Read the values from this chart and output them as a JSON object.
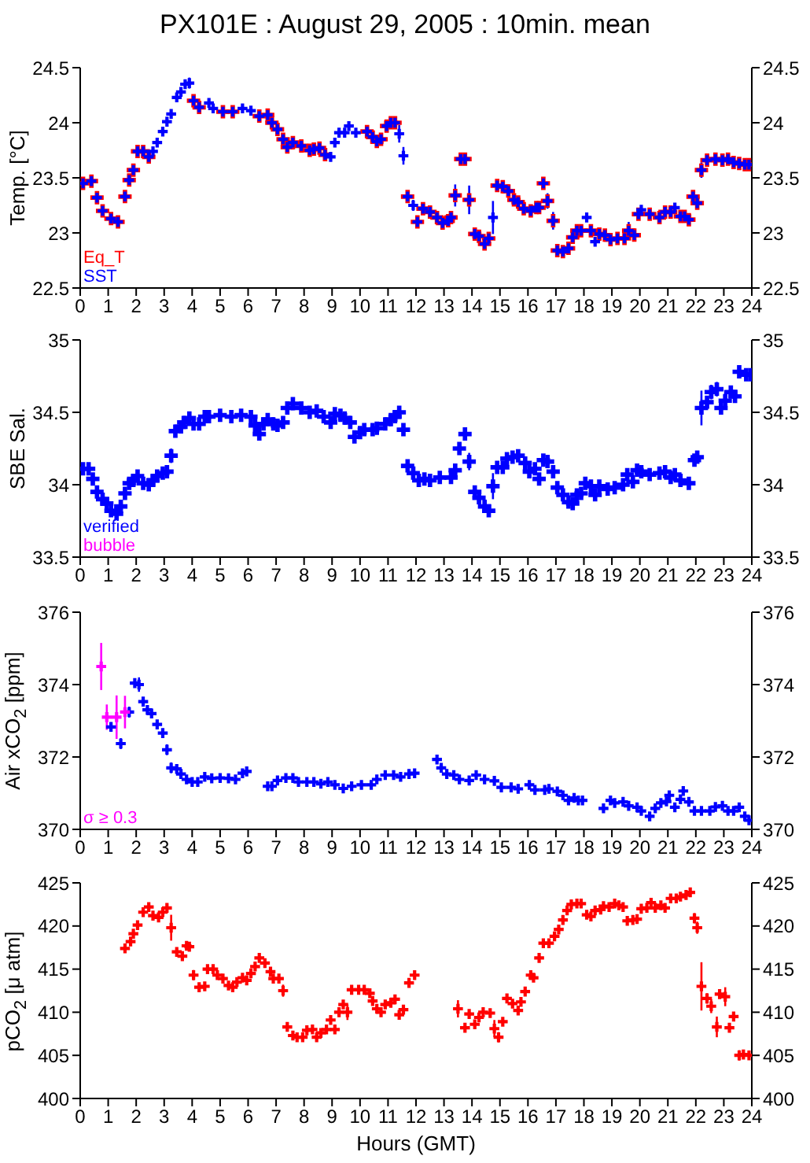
{
  "chart_data": [
    {
      "type": "scatter",
      "title": "PX101E : August 29, 2005 : 10min. mean",
      "ylabel": "Temp. [°C]",
      "legend": "bottom left",
      "marker": "cross",
      "xlim": [
        0,
        24
      ],
      "xticks": [
        0,
        1,
        2,
        3,
        4,
        5,
        6,
        7,
        8,
        9,
        10,
        11,
        12,
        13,
        14,
        15,
        16,
        17,
        18,
        19,
        20,
        21,
        22,
        23,
        24
      ],
      "ylim": [
        22.5,
        24.5
      ],
      "yticks": [
        22.5,
        23,
        23.5,
        24,
        24.5
      ],
      "y2lim": [
        22.5,
        24.5
      ],
      "y2ticks": [
        22.5,
        23,
        23.5,
        24,
        24.5
      ],
      "x": [
        0.1,
        0.4,
        0.6,
        0.8,
        1.1,
        1.35,
        1.6,
        1.75,
        1.9,
        2.05,
        2.25,
        2.45,
        2.6,
        2.75,
        2.95,
        3.1,
        3.25,
        3.45,
        3.6,
        3.75,
        3.9,
        4.05,
        4.25,
        4.6,
        4.75,
        5.1,
        5.45,
        5.8,
        6.1,
        6.4,
        6.7,
        6.85,
        7.05,
        7.25,
        7.4,
        7.6,
        7.9,
        8.2,
        8.35,
        8.55,
        8.75,
        8.95,
        9.1,
        9.25,
        9.45,
        9.6,
        9.85,
        10.25,
        10.45,
        10.6,
        10.75,
        10.95,
        11.1,
        11.25,
        11.4,
        11.55,
        11.7,
        11.9,
        12.05,
        12.25,
        12.5,
        12.75,
        12.95,
        13.15,
        13.25,
        13.4,
        13.6,
        13.75,
        13.9,
        14.1,
        14.25,
        14.45,
        14.6,
        14.75,
        14.9,
        15.1,
        15.3,
        15.5,
        15.65,
        15.85,
        16.1,
        16.3,
        16.4,
        16.55,
        16.7,
        16.9,
        17.05,
        17.25,
        17.45,
        17.6,
        17.75,
        17.9,
        18.1,
        18.25,
        18.4,
        18.55,
        18.75,
        18.95,
        19.2,
        19.45,
        19.6,
        19.8,
        19.95,
        20.05,
        20.35,
        20.7,
        20.9,
        21.1,
        21.25,
        21.45,
        21.6,
        21.75,
        21.9,
        22.05,
        22.2,
        22.4,
        22.7,
        22.95,
        23.15,
        23.35,
        23.55,
        23.75,
        23.9
      ],
      "series": [
        {
          "name": "Eq_T",
          "color": "#ff0000",
          "values": [
            23.45,
            23.47,
            23.32,
            23.2,
            23.13,
            23.1,
            23.33,
            23.48,
            23.57,
            23.74,
            23.74,
            23.69,
            null,
            null,
            null,
            null,
            null,
            null,
            null,
            null,
            null,
            24.2,
            24.14,
            null,
            null,
            24.1,
            24.1,
            null,
            null,
            24.06,
            24.07,
            24.0,
            23.94,
            23.85,
            23.78,
            23.82,
            23.79,
            23.75,
            23.76,
            23.77,
            23.71,
            null,
            null,
            null,
            null,
            null,
            null,
            23.92,
            23.87,
            23.83,
            23.85,
            23.97,
            24.0,
            24.0,
            null,
            null,
            23.33,
            null,
            23.1,
            23.22,
            23.19,
            23.14,
            23.09,
            23.11,
            23.14,
            23.34,
            23.67,
            23.67,
            23.3,
            22.99,
            22.97,
            22.9,
            22.95,
            null,
            23.43,
            23.42,
            23.38,
            23.3,
            23.28,
            23.22,
            23.2,
            23.23,
            23.23,
            23.45,
            23.29,
            23.11,
            22.84,
            22.83,
            22.86,
            22.96,
            23.02,
            23.02,
            null,
            23.02,
            null,
            22.99,
            22.98,
            22.94,
            22.95,
            22.95,
            23.02,
            22.98,
            23.17,
            null,
            23.17,
            23.14,
            23.19,
            23.19,
            null,
            23.15,
            23.15,
            23.12,
            23.33,
            23.27,
            23.57,
            23.66,
            23.67,
            23.66,
            23.67,
            23.64,
            23.63,
            23.62,
            23.62
          ]
        },
        {
          "name": "SST",
          "color": "#0000ff",
          "values": [
            23.45,
            23.47,
            23.32,
            23.2,
            23.13,
            23.1,
            23.33,
            23.48,
            23.57,
            23.74,
            23.74,
            23.69,
            23.74,
            23.82,
            23.92,
            24.01,
            24.08,
            24.23,
            24.28,
            24.35,
            24.36,
            24.2,
            24.14,
            24.18,
            24.13,
            24.1,
            24.1,
            24.13,
            24.11,
            24.06,
            24.07,
            24.0,
            23.94,
            23.85,
            23.78,
            23.82,
            23.79,
            23.75,
            23.76,
            23.77,
            23.71,
            23.69,
            23.82,
            23.91,
            23.91,
            23.97,
            23.91,
            23.92,
            23.87,
            23.83,
            23.85,
            23.97,
            24.0,
            24.0,
            23.9,
            23.7,
            23.33,
            23.25,
            23.1,
            23.22,
            23.19,
            23.14,
            23.09,
            23.11,
            23.14,
            23.34,
            23.67,
            23.67,
            23.3,
            22.99,
            22.97,
            22.9,
            22.95,
            23.14,
            23.43,
            23.42,
            23.38,
            23.3,
            23.28,
            23.22,
            23.2,
            23.23,
            23.23,
            23.45,
            23.29,
            23.11,
            22.84,
            22.83,
            22.86,
            22.96,
            23.02,
            23.02,
            23.14,
            23.02,
            22.92,
            22.99,
            22.98,
            22.94,
            22.95,
            22.95,
            23.02,
            22.98,
            23.17,
            23.21,
            23.17,
            23.14,
            23.19,
            23.19,
            23.23,
            23.15,
            23.15,
            23.12,
            23.33,
            23.27,
            23.57,
            23.66,
            23.67,
            23.66,
            23.67,
            23.64,
            23.63,
            23.62,
            23.62
          ],
          "errors": [
            null,
            null,
            null,
            null,
            null,
            null,
            null,
            0.05,
            0.05,
            null,
            null,
            null,
            null,
            null,
            null,
            null,
            null,
            null,
            null,
            null,
            0.05,
            null,
            null,
            null,
            null,
            null,
            null,
            null,
            null,
            null,
            null,
            null,
            null,
            null,
            null,
            null,
            null,
            null,
            null,
            null,
            null,
            null,
            null,
            null,
            null,
            null,
            null,
            null,
            null,
            null,
            null,
            null,
            null,
            null,
            0.08,
            0.08,
            null,
            0.05,
            null,
            null,
            null,
            null,
            null,
            null,
            null,
            0.1,
            0.05,
            0.05,
            0.13,
            null,
            null,
            null,
            null,
            0.15,
            0.05,
            null,
            null,
            null,
            null,
            null,
            null,
            null,
            null,
            null,
            0.07,
            0.08,
            null,
            null,
            null,
            null,
            null,
            null,
            null,
            0.05,
            null,
            null,
            null,
            null,
            null,
            null,
            0.08,
            0.05,
            0.05,
            null,
            null,
            null,
            null,
            null,
            null,
            null,
            null,
            null,
            0.05,
            null,
            0.07,
            null,
            null,
            null,
            null,
            null,
            null,
            null,
            null
          ]
        }
      ]
    },
    {
      "type": "scatter",
      "ylabel": "SBE Sal.",
      "legend": "bottom left",
      "marker": "cross",
      "xlim": [
        0,
        24
      ],
      "xticks": [
        0,
        1,
        2,
        3,
        4,
        5,
        6,
        7,
        8,
        9,
        10,
        11,
        12,
        13,
        14,
        15,
        16,
        17,
        18,
        19,
        20,
        21,
        22,
        23,
        24
      ],
      "ylim": [
        33.5,
        35
      ],
      "yticks": [
        33.5,
        34,
        34.5,
        35
      ],
      "y2lim": [
        33.5,
        35
      ],
      "y2ticks": [
        33.5,
        34,
        34.5,
        35
      ],
      "x": [
        0.1,
        0.3,
        0.45,
        0.6,
        0.8,
        0.95,
        1.1,
        1.3,
        1.45,
        1.6,
        1.75,
        1.9,
        2.05,
        2.25,
        2.45,
        2.6,
        2.75,
        2.95,
        3.1,
        3.25,
        3.4,
        3.6,
        3.7,
        3.9,
        4.05,
        4.25,
        4.45,
        4.6,
        5.0,
        5.4,
        5.75,
        6.1,
        6.25,
        6.4,
        6.55,
        6.7,
        6.9,
        7.05,
        7.25,
        7.4,
        7.6,
        7.9,
        8.2,
        8.45,
        8.7,
        8.95,
        9.1,
        9.3,
        9.45,
        9.65,
        9.8,
        10.0,
        10.15,
        10.45,
        10.6,
        10.9,
        11.1,
        11.25,
        11.4,
        11.55,
        11.7,
        11.9,
        12.1,
        12.3,
        12.5,
        12.85,
        13.25,
        13.4,
        13.55,
        13.75,
        13.9,
        14.1,
        14.25,
        14.45,
        14.6,
        14.75,
        14.9,
        15.1,
        15.25,
        15.45,
        15.65,
        15.9,
        16.05,
        16.25,
        16.4,
        16.55,
        16.7,
        16.9,
        17.05,
        17.25,
        17.45,
        17.6,
        17.75,
        17.9,
        18.05,
        18.25,
        18.4,
        18.55,
        18.85,
        19.1,
        19.4,
        19.55,
        19.75,
        19.9,
        20.05,
        20.35,
        20.7,
        20.9,
        21.1,
        21.25,
        21.45,
        21.75,
        21.95,
        22.05,
        22.2,
        22.4,
        22.55,
        22.75,
        22.9,
        23.05,
        23.25,
        23.4,
        23.55,
        23.8,
        23.95
      ],
      "series": [
        {
          "name": "verified",
          "color": "#0000ff",
          "values": [
            34.11,
            34.11,
            34.04,
            33.95,
            33.9,
            33.87,
            33.82,
            33.8,
            33.85,
            33.94,
            34.01,
            34.03,
            34.06,
            34.01,
            34.0,
            34.03,
            34.06,
            34.08,
            34.09,
            34.2,
            34.37,
            34.4,
            34.43,
            34.46,
            34.42,
            34.42,
            34.47,
            34.47,
            34.48,
            34.47,
            34.48,
            34.47,
            34.41,
            34.35,
            34.42,
            34.45,
            34.42,
            34.41,
            34.43,
            34.53,
            34.56,
            34.53,
            34.5,
            34.51,
            34.47,
            34.43,
            34.49,
            34.48,
            34.46,
            34.43,
            34.33,
            34.36,
            34.38,
            34.38,
            34.39,
            34.42,
            34.45,
            34.47,
            34.5,
            34.38,
            34.13,
            34.08,
            34.03,
            34.04,
            34.03,
            34.05,
            34.05,
            34.1,
            34.25,
            34.35,
            34.16,
            33.95,
            33.91,
            33.85,
            33.82,
            33.99,
            34.12,
            34.12,
            34.18,
            34.19,
            34.2,
            34.15,
            34.09,
            34.11,
            34.04,
            34.17,
            34.16,
            34.09,
            33.98,
            33.93,
            33.88,
            33.87,
            33.93,
            33.94,
            34.01,
            33.99,
            33.93,
            33.99,
            33.97,
            33.98,
            34.0,
            34.07,
            34.02,
            34.1,
            34.09,
            34.07,
            34.08,
            34.09,
            34.05,
            34.07,
            34.03,
            34.01,
            34.17,
            34.19,
            34.53,
            34.57,
            34.64,
            34.66,
            34.53,
            34.58,
            34.64,
            34.61,
            34.78,
            34.76,
            34.76
          ],
          "errors": [
            null,
            null,
            0.03,
            null,
            null,
            null,
            null,
            null,
            0.04,
            null,
            null,
            null,
            null,
            null,
            null,
            null,
            null,
            null,
            null,
            0.05,
            null,
            null,
            null,
            null,
            null,
            null,
            null,
            null,
            null,
            null,
            null,
            null,
            null,
            null,
            null,
            null,
            null,
            null,
            0.03,
            null,
            null,
            null,
            null,
            null,
            null,
            null,
            null,
            null,
            null,
            null,
            null,
            null,
            null,
            null,
            null,
            null,
            null,
            null,
            null,
            0.04,
            0.04,
            null,
            null,
            null,
            null,
            null,
            null,
            null,
            0.04,
            null,
            0.06,
            null,
            null,
            null,
            null,
            0.09,
            null,
            null,
            0.04,
            null,
            null,
            null,
            null,
            null,
            null,
            null,
            null,
            null,
            null,
            null,
            null,
            null,
            null,
            null,
            null,
            null,
            null,
            null,
            null,
            null,
            null,
            0.04,
            null,
            null,
            null,
            null,
            null,
            null,
            null,
            null,
            null,
            null,
            null,
            null,
            0.12,
            null,
            0.05,
            0.05,
            null,
            0.06,
            null,
            null,
            null,
            null,
            null
          ]
        },
        {
          "name": "bubble",
          "color": "#ff00ff",
          "values": [
            null,
            null,
            null,
            null,
            null,
            null,
            null,
            null,
            null,
            null,
            null,
            null,
            null,
            null,
            null,
            null,
            null,
            null,
            null,
            null,
            null,
            null,
            null,
            null,
            null,
            null,
            null,
            null,
            null,
            null,
            null,
            null,
            null,
            null,
            null,
            null,
            null,
            null,
            null,
            null,
            null,
            null,
            null,
            null,
            null,
            null,
            null,
            null,
            null,
            null,
            null,
            null,
            null,
            null,
            null,
            null,
            null,
            null,
            null,
            null,
            null,
            null,
            null,
            null,
            null,
            null,
            null,
            null,
            null,
            null,
            null,
            null,
            null,
            null,
            null,
            null,
            null,
            null,
            null,
            null,
            null,
            null,
            null,
            null,
            null,
            null,
            null,
            null,
            null,
            null,
            null,
            null,
            null,
            null,
            null,
            null,
            null,
            null,
            null,
            null,
            null,
            null,
            null,
            null,
            null,
            null,
            null,
            null,
            null,
            null,
            null,
            null,
            null,
            null,
            null,
            null,
            null,
            null,
            null,
            null,
            null,
            null,
            null,
            null,
            null
          ]
        }
      ]
    },
    {
      "type": "scatter",
      "ylabel": "Air xCO$_{2}$ [ppm]",
      "marker": "cross",
      "xlim": [
        0,
        24
      ],
      "xticks": [
        0,
        1,
        2,
        3,
        4,
        5,
        6,
        7,
        8,
        9,
        10,
        11,
        12,
        13,
        14,
        15,
        16,
        17,
        18,
        19,
        20,
        21,
        22,
        23,
        24
      ],
      "ylim": [
        370,
        376
      ],
      "yticks": [
        370,
        372,
        374,
        376
      ],
      "y2lim": [
        370,
        376
      ],
      "y2ticks": [
        370,
        372,
        374,
        376
      ],
      "x": [
        1.1,
        1.45,
        1.75,
        1.95,
        2.1,
        2.25,
        2.4,
        2.55,
        2.75,
        2.95,
        3.1,
        3.25,
        3.45,
        3.6,
        3.8,
        4.0,
        4.2,
        4.45,
        4.7,
        5.0,
        5.3,
        5.55,
        5.8,
        5.95,
        6.7,
        6.85,
        7.05,
        7.35,
        7.6,
        7.8,
        8.1,
        8.35,
        8.6,
        8.85,
        9.1,
        9.4,
        9.7,
        10.05,
        10.4,
        10.6,
        10.9,
        11.2,
        11.45,
        11.75,
        11.95,
        12.75,
        12.9,
        13.1,
        13.35,
        13.55,
        13.9,
        14.15,
        14.45,
        14.8,
        15.05,
        15.4,
        15.65,
        16.05,
        16.25,
        16.6,
        16.75,
        17.05,
        17.25,
        17.45,
        17.65,
        17.8,
        17.95,
        18.7,
        18.95,
        19.1,
        19.4,
        19.6,
        19.9,
        20.05,
        20.35,
        20.55,
        20.75,
        20.95,
        21.05,
        21.25,
        21.45,
        21.55,
        21.75,
        21.95,
        22.2,
        22.5,
        22.7,
        22.95,
        23.15,
        23.35,
        23.55,
        23.75,
        23.9
      ],
      "series": [
        {
          "color": "#0000ff",
          "values": [
            372.83,
            372.37,
            373.24,
            374.04,
            374.0,
            373.53,
            373.3,
            373.2,
            372.9,
            372.66,
            372.2,
            371.7,
            371.67,
            371.53,
            371.38,
            371.31,
            371.31,
            371.45,
            371.41,
            371.42,
            371.41,
            371.38,
            371.55,
            371.6,
            371.19,
            371.19,
            371.35,
            371.42,
            371.42,
            371.31,
            371.31,
            371.31,
            371.26,
            371.31,
            371.23,
            371.13,
            371.19,
            371.23,
            371.23,
            371.38,
            371.5,
            371.5,
            371.45,
            371.53,
            371.55,
            371.93,
            371.7,
            371.53,
            371.5,
            371.38,
            371.35,
            371.5,
            371.38,
            371.34,
            371.16,
            371.16,
            371.12,
            371.23,
            371.09,
            371.09,
            371.12,
            371.05,
            370.94,
            370.8,
            370.87,
            370.8,
            370.8,
            370.58,
            370.8,
            370.73,
            370.76,
            370.65,
            370.61,
            370.51,
            370.36,
            370.58,
            370.73,
            370.77,
            370.94,
            370.61,
            370.83,
            371.06,
            370.76,
            370.51,
            370.51,
            370.51,
            370.62,
            370.65,
            370.51,
            370.51,
            370.61,
            370.36,
            370.25
          ],
          "errors": [
            null,
            0.15,
            0.15,
            0.1,
            0.2,
            null,
            null,
            null,
            null,
            null,
            0.15,
            0.15,
            null,
            null,
            null,
            null,
            null,
            null,
            null,
            null,
            null,
            null,
            null,
            null,
            null,
            null,
            null,
            null,
            null,
            null,
            null,
            null,
            null,
            null,
            null,
            null,
            null,
            null,
            null,
            null,
            null,
            null,
            null,
            null,
            null,
            0.12,
            null,
            null,
            null,
            null,
            null,
            null,
            null,
            null,
            null,
            null,
            null,
            null,
            null,
            null,
            null,
            null,
            null,
            null,
            null,
            null,
            null,
            null,
            null,
            null,
            null,
            null,
            null,
            null,
            null,
            null,
            null,
            null,
            null,
            null,
            0.1,
            null,
            0.1,
            null,
            null,
            null,
            null,
            null,
            null,
            null,
            0.08,
            null,
            null
          ]
        },
        {
          "name": "σ ≥ 0.3",
          "color": "#ff00ff",
          "x": [
            0.75,
            0.95,
            1.3,
            1.6
          ],
          "values": [
            374.5,
            373.1,
            373.1,
            373.24
          ],
          "errors": [
            0.65,
            0.35,
            0.6,
            0.45
          ]
        }
      ]
    },
    {
      "type": "scatter",
      "ylabel": "pCO$_{2}$ [μ atm]",
      "xlabel": "Hours (GMT)",
      "marker": "cross",
      "xlim": [
        0,
        24
      ],
      "xticks": [
        0,
        1,
        2,
        3,
        4,
        5,
        6,
        7,
        8,
        9,
        10,
        11,
        12,
        13,
        14,
        15,
        16,
        17,
        18,
        19,
        20,
        21,
        22,
        23,
        24
      ],
      "ylim": [
        400,
        425
      ],
      "yticks": [
        400,
        405,
        410,
        415,
        420,
        425
      ],
      "y2lim": [
        400,
        425
      ],
      "y2ticks": [
        400,
        405,
        410,
        415,
        420,
        425
      ],
      "x": [
        1.6,
        1.8,
        1.9,
        2.05,
        2.25,
        2.45,
        2.6,
        2.8,
        2.95,
        3.1,
        3.25,
        3.45,
        3.65,
        3.8,
        3.9,
        4.05,
        4.25,
        4.45,
        4.55,
        4.75,
        4.9,
        5.1,
        5.3,
        5.45,
        5.6,
        5.8,
        5.95,
        6.1,
        6.25,
        6.4,
        6.6,
        6.8,
        6.9,
        7.1,
        7.25,
        7.4,
        7.6,
        7.75,
        7.95,
        8.1,
        8.3,
        8.45,
        8.6,
        8.8,
        8.95,
        9.1,
        9.25,
        9.4,
        9.55,
        9.7,
        9.95,
        10.15,
        10.35,
        10.45,
        10.6,
        10.75,
        10.9,
        11.1,
        11.25,
        11.4,
        11.55,
        11.75,
        11.95,
        13.5,
        13.75,
        13.9,
        14.1,
        14.25,
        14.4,
        14.65,
        14.8,
        14.95,
        15.1,
        15.25,
        15.45,
        15.65,
        15.75,
        15.9,
        16.1,
        16.2,
        16.4,
        16.55,
        16.75,
        16.95,
        17.1,
        17.25,
        17.4,
        17.55,
        17.75,
        17.9,
        18.1,
        18.25,
        18.4,
        18.6,
        18.7,
        18.9,
        19.1,
        19.25,
        19.4,
        19.55,
        19.75,
        19.9,
        20.05,
        20.25,
        20.4,
        20.55,
        20.75,
        20.9,
        21.1,
        21.3,
        21.45,
        21.65,
        21.8,
        21.95,
        22.05,
        22.2,
        22.4,
        22.55,
        22.75,
        22.85,
        23.05,
        23.2,
        23.35,
        23.55,
        23.7,
        23.9
      ],
      "series": [
        {
          "color": "#ff0000",
          "values": [
            417.4,
            418.2,
            419.1,
            420.1,
            421.6,
            422.2,
            421.2,
            421.0,
            421.6,
            422.1,
            419.8,
            417.0,
            416.5,
            417.7,
            417.6,
            414.3,
            412.9,
            413.0,
            415.0,
            415.0,
            414.3,
            413.9,
            413.1,
            412.9,
            413.5,
            414.0,
            413.7,
            414.5,
            415.3,
            416.3,
            415.7,
            414.7,
            413.9,
            413.9,
            412.5,
            408.3,
            407.3,
            407.1,
            407.1,
            407.9,
            408.0,
            407.1,
            407.6,
            408.0,
            409.1,
            408.0,
            410.0,
            410.9,
            410.0,
            412.6,
            412.6,
            412.6,
            412.2,
            411.3,
            410.4,
            410.0,
            410.9,
            411.1,
            411.5,
            409.7,
            410.3,
            413.4,
            414.3,
            410.4,
            408.2,
            409.8,
            408.6,
            409.4,
            410.0,
            409.9,
            408.1,
            407.1,
            408.9,
            411.6,
            411.0,
            410.2,
            411.2,
            412.4,
            414.3,
            414.0,
            416.3,
            418.0,
            418.0,
            418.8,
            419.6,
            420.7,
            421.8,
            422.5,
            422.6,
            422.6,
            421.3,
            421.1,
            421.8,
            421.9,
            422.3,
            422.2,
            422.6,
            422.4,
            422.2,
            420.6,
            420.7,
            420.8,
            422.0,
            422.1,
            422.7,
            422.1,
            422.4,
            422.1,
            423.2,
            423.2,
            423.4,
            423.6,
            423.9,
            420.9,
            419.8,
            413.0,
            411.6,
            410.7,
            408.3,
            412.1,
            411.8,
            408.2,
            409.5,
            405.0,
            405.1,
            405.0
          ],
          "errors": [
            null,
            null,
            null,
            0.4,
            null,
            null,
            null,
            null,
            null,
            null,
            1.5,
            null,
            null,
            null,
            null,
            0.6,
            null,
            null,
            null,
            null,
            null,
            null,
            null,
            null,
            null,
            null,
            null,
            null,
            null,
            null,
            null,
            null,
            null,
            null,
            0.7,
            0.5,
            null,
            null,
            null,
            null,
            null,
            null,
            null,
            null,
            null,
            null,
            0.4,
            null,
            0.9,
            null,
            null,
            null,
            null,
            null,
            0.4,
            null,
            null,
            null,
            null,
            null,
            0.4,
            0.3,
            null,
            1,
            null,
            null,
            null,
            null,
            null,
            null,
            1,
            0.6,
            0.4,
            0.4,
            null,
            null,
            null,
            null,
            null,
            null,
            0.5,
            null,
            null,
            null,
            null,
            null,
            null,
            null,
            null,
            null,
            null,
            null,
            null,
            null,
            null,
            null,
            null,
            null,
            0.4,
            null,
            null,
            0.4,
            null,
            null,
            null,
            null,
            null,
            null,
            null,
            null,
            null,
            null,
            null,
            0.6,
            0.7,
            2.8,
            0.6,
            0.8,
            1.2,
            0.5,
            1.1,
            0.4,
            0.4,
            0.6,
            null,
            null
          ]
        }
      ]
    }
  ]
}
